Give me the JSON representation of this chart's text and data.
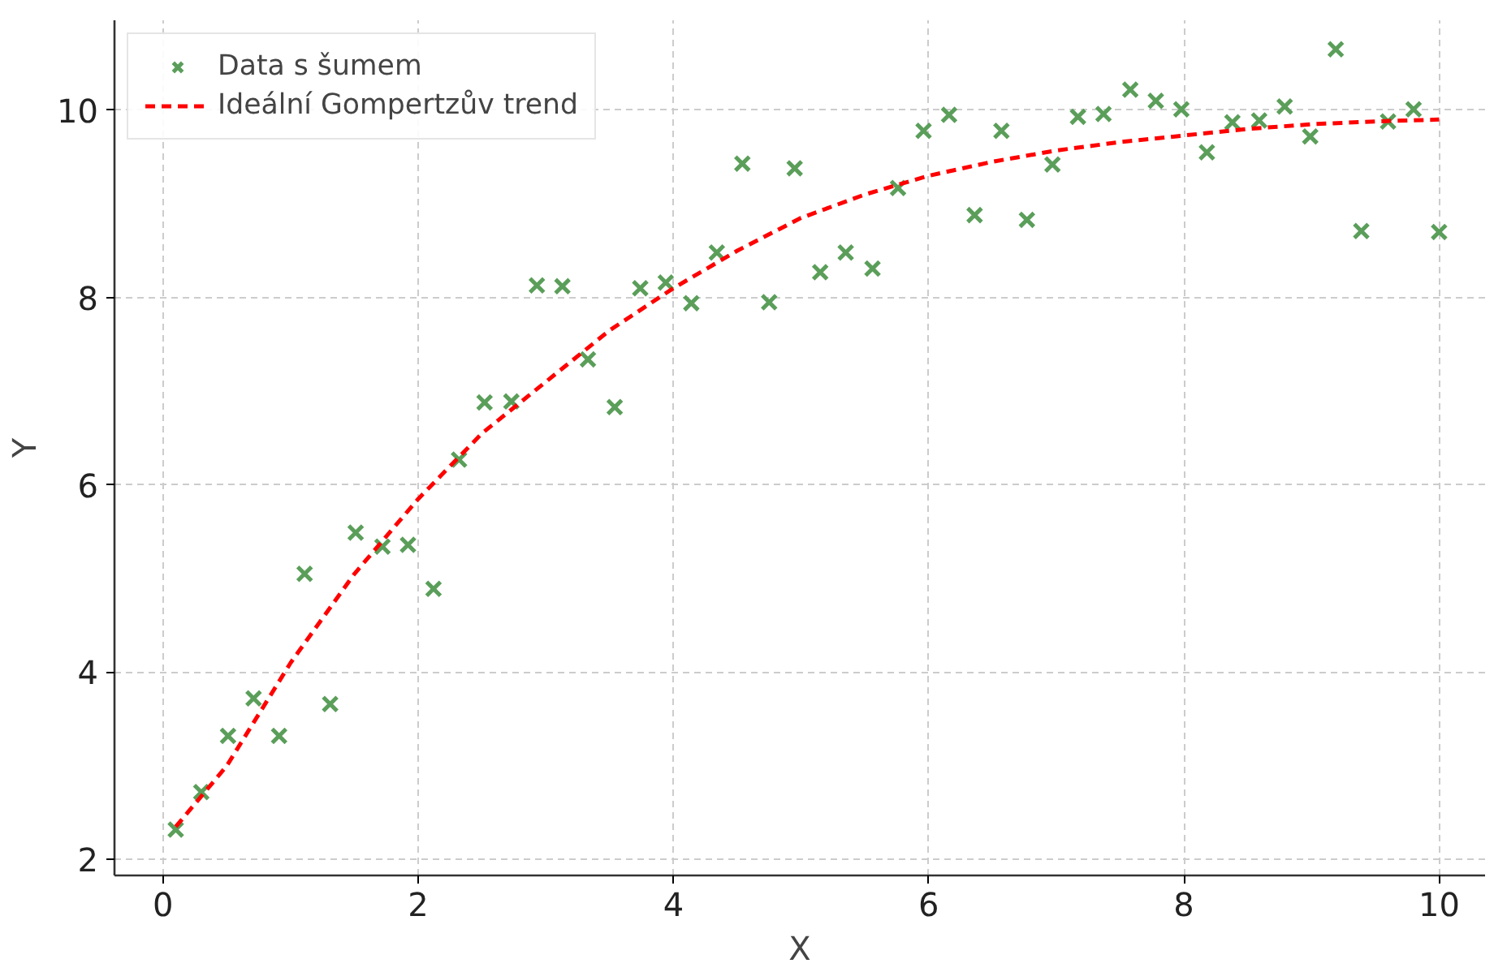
{
  "chart_data": {
    "type": "scatter",
    "xlabel": "X",
    "ylabel": "Y",
    "xlim": [
      -0.38,
      10.36
    ],
    "ylim": [
      1.83,
      10.96
    ],
    "xticks": [
      0,
      2,
      4,
      6,
      8,
      10
    ],
    "yticks": [
      2,
      4,
      6,
      8,
      10
    ],
    "grid": true,
    "legend": "top left",
    "series": [
      {
        "name": "Data s šumem",
        "marker": "cross",
        "color": "#5a9e5a",
        "x": [
          0.1,
          0.3,
          0.51,
          0.71,
          0.91,
          1.11,
          1.31,
          1.51,
          1.72,
          1.92,
          2.12,
          2.32,
          2.52,
          2.73,
          2.93,
          3.13,
          3.33,
          3.54,
          3.74,
          3.94,
          4.14,
          4.34,
          4.54,
          4.75,
          4.95,
          5.15,
          5.35,
          5.56,
          5.76,
          5.96,
          6.16,
          6.36,
          6.57,
          6.77,
          6.97,
          7.17,
          7.37,
          7.58,
          7.78,
          7.98,
          8.18,
          8.38,
          8.59,
          8.79,
          8.99,
          9.19,
          9.39,
          9.6,
          9.8,
          10.0
        ],
        "values": [
          2.32,
          2.72,
          3.32,
          3.72,
          3.32,
          5.05,
          3.66,
          5.49,
          5.34,
          5.36,
          4.89,
          6.27,
          6.88,
          6.89,
          8.13,
          8.12,
          7.34,
          6.83,
          8.1,
          8.16,
          7.94,
          8.48,
          9.43,
          7.95,
          9.38,
          8.27,
          8.48,
          8.31,
          9.17,
          9.78,
          9.95,
          8.88,
          9.78,
          8.83,
          9.42,
          9.93,
          9.96,
          10.22,
          10.1,
          10.01,
          9.55,
          9.87,
          9.89,
          10.04,
          9.72,
          10.65,
          8.71,
          9.88,
          10.01,
          8.7
        ]
      },
      {
        "name": "Ideální Gompertzův trend",
        "type": "line",
        "line_style": "dashed",
        "color": "#ff0000",
        "x": [
          0.1,
          0.5,
          1,
          1.5,
          2,
          2.5,
          3,
          3.5,
          4,
          4.5,
          5,
          5.5,
          6,
          6.5,
          7,
          7.5,
          8,
          8.5,
          9,
          9.5,
          10
        ],
        "values": [
          2.35,
          3.0,
          4.1,
          5.05,
          5.85,
          6.55,
          7.1,
          7.65,
          8.1,
          8.5,
          8.85,
          9.1,
          9.3,
          9.45,
          9.57,
          9.66,
          9.73,
          9.8,
          9.85,
          9.88,
          9.9
        ]
      }
    ]
  }
}
